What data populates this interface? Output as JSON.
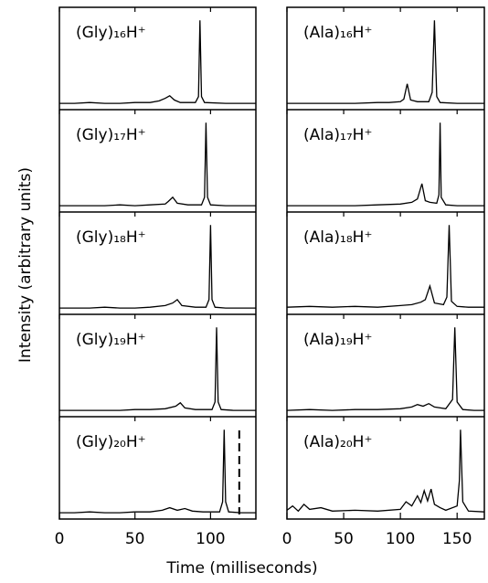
{
  "xlabel": "Time (milliseconds)",
  "ylabel": "Intensity (arbitrary units)",
  "chart_data": [
    {
      "type": "line",
      "color": "#000000",
      "xlim": [
        0,
        130
      ],
      "xticks": [
        0,
        50,
        100
      ],
      "ylim": [
        0,
        110
      ],
      "panels": [
        {
          "label": "(Gly)₁₆H⁺",
          "x": [
            0,
            10,
            20,
            30,
            40,
            50,
            60,
            66,
            70,
            73,
            76,
            80,
            90,
            92,
            93,
            94,
            96,
            110,
            120,
            130
          ],
          "y": [
            2,
            2,
            3,
            2,
            2,
            3,
            3,
            5,
            8,
            11,
            6,
            3,
            3,
            10,
            100,
            10,
            3,
            2,
            2,
            2
          ]
        },
        {
          "label": "(Gly)₁₇H⁺",
          "x": [
            0,
            10,
            20,
            30,
            40,
            50,
            60,
            70,
            72,
            75,
            78,
            85,
            94,
            96,
            97,
            98,
            100,
            110,
            120,
            130
          ],
          "y": [
            2,
            2,
            2,
            2,
            3,
            2,
            3,
            4,
            7,
            12,
            5,
            3,
            3,
            12,
            100,
            12,
            3,
            2,
            2,
            2
          ]
        },
        {
          "label": "(Gly)₁₈H⁺",
          "x": [
            0,
            10,
            20,
            30,
            40,
            50,
            60,
            70,
            75,
            78,
            81,
            90,
            97,
            99,
            100,
            101,
            103,
            110,
            120,
            130
          ],
          "y": [
            2,
            2,
            2,
            3,
            2,
            2,
            3,
            5,
            8,
            12,
            5,
            3,
            3,
            12,
            100,
            12,
            3,
            2,
            2,
            2
          ]
        },
        {
          "label": "(Gly)₁₉H⁺",
          "x": [
            0,
            10,
            20,
            30,
            40,
            50,
            60,
            70,
            77,
            80,
            83,
            90,
            101,
            103,
            104,
            105,
            107,
            115,
            120,
            130
          ],
          "y": [
            2,
            2,
            2,
            2,
            2,
            3,
            3,
            4,
            7,
            11,
            5,
            3,
            3,
            12,
            100,
            12,
            3,
            2,
            2,
            2
          ]
        },
        {
          "label": "(Gly)₂₀H⁺",
          "x": [
            0,
            10,
            20,
            30,
            40,
            50,
            60,
            68,
            73,
            78,
            83,
            88,
            95,
            106,
            108,
            109,
            110,
            112,
            120,
            130
          ],
          "y": [
            2,
            2,
            3,
            2,
            2,
            3,
            3,
            5,
            8,
            5,
            7,
            4,
            3,
            3,
            15,
            100,
            15,
            3,
            2,
            2
          ],
          "marker_x": 119
        }
      ]
    },
    {
      "type": "line",
      "color": "#000000",
      "xlim": [
        0,
        174
      ],
      "xticks": [
        0,
        50,
        100,
        150
      ],
      "ylim": [
        0,
        110
      ],
      "panels": [
        {
          "label": "(Ala)₁₆H⁺",
          "x": [
            0,
            20,
            40,
            60,
            80,
            90,
            100,
            103,
            106,
            109,
            115,
            125,
            128,
            130,
            132,
            135,
            150,
            174
          ],
          "y": [
            2,
            2,
            2,
            2,
            3,
            3,
            4,
            7,
            25,
            6,
            4,
            4,
            15,
            100,
            10,
            3,
            2,
            2
          ]
        },
        {
          "label": "(Ala)₁₇H⁺",
          "x": [
            0,
            20,
            40,
            60,
            80,
            100,
            110,
            115,
            119,
            122,
            126,
            132,
            134,
            135,
            136,
            140,
            150,
            174
          ],
          "y": [
            2,
            2,
            2,
            2,
            3,
            4,
            6,
            10,
            28,
            8,
            6,
            5,
            15,
            100,
            12,
            3,
            2,
            2
          ]
        },
        {
          "label": "(Ala)₁₈H⁺",
          "x": [
            0,
            20,
            40,
            60,
            80,
            100,
            110,
            118,
            122,
            126,
            130,
            138,
            141,
            143,
            145,
            150,
            160,
            174
          ],
          "y": [
            3,
            4,
            3,
            4,
            3,
            5,
            6,
            9,
            12,
            28,
            8,
            6,
            15,
            100,
            10,
            4,
            3,
            3
          ]
        },
        {
          "label": "(Ala)₁₉H⁺",
          "x": [
            0,
            20,
            40,
            60,
            80,
            100,
            110,
            115,
            120,
            125,
            130,
            140,
            146,
            148,
            150,
            155,
            165,
            174
          ],
          "y": [
            2,
            3,
            2,
            3,
            3,
            4,
            6,
            9,
            7,
            10,
            6,
            4,
            15,
            100,
            12,
            3,
            2,
            2
          ]
        },
        {
          "label": "(Ala)₂₀H⁺",
          "x": [
            0,
            5,
            10,
            15,
            20,
            30,
            40,
            60,
            80,
            100,
            105,
            110,
            115,
            118,
            121,
            124,
            127,
            130,
            135,
            140,
            150,
            152,
            153,
            155,
            160,
            174
          ],
          "y": [
            5,
            10,
            4,
            12,
            6,
            8,
            4,
            5,
            4,
            6,
            15,
            10,
            22,
            14,
            28,
            16,
            30,
            12,
            8,
            5,
            10,
            40,
            100,
            15,
            4,
            3
          ]
        }
      ]
    }
  ]
}
